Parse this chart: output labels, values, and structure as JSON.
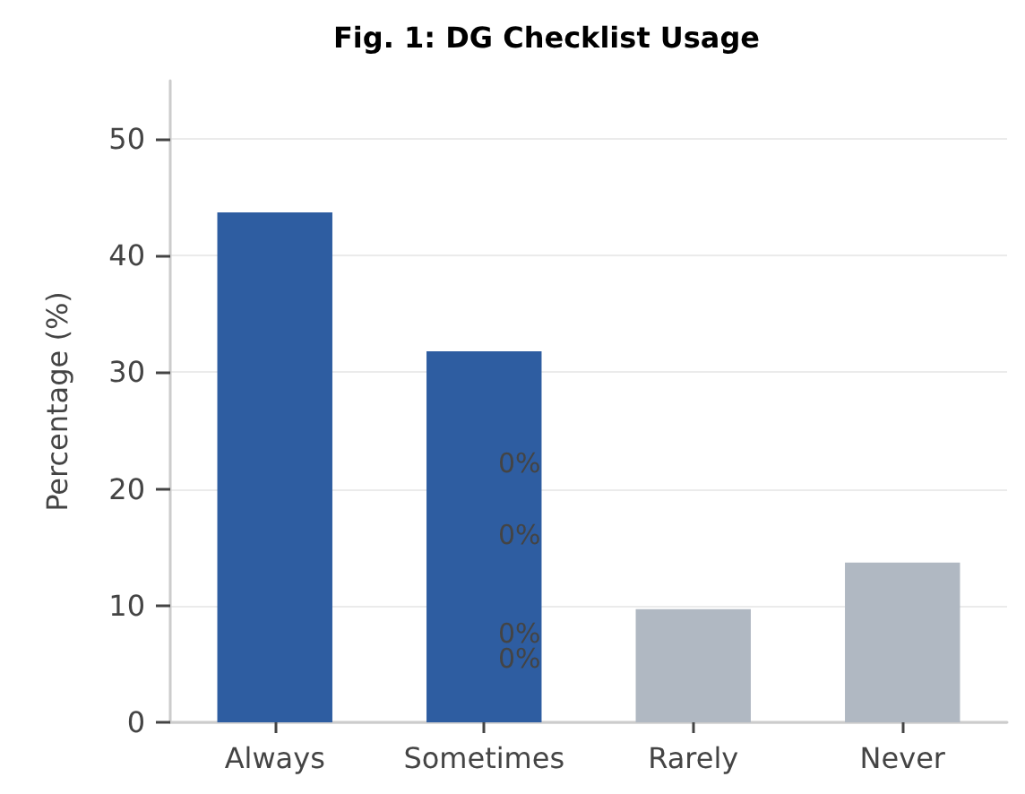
{
  "chart_data": {
    "type": "bar",
    "title": "Fig. 1: DG Checklist Usage",
    "ylabel": "Percentage (%)",
    "categories": [
      "Always",
      "Sometimes",
      "Rarely",
      "Never"
    ],
    "values": [
      43.7,
      31.8,
      9.7,
      13.7
    ],
    "colors": [
      "#2e5da1",
      "#2e5da1",
      "#b0b8c2",
      "#b0b8c2"
    ],
    "ylim": [
      0,
      55
    ],
    "yticks": [
      0,
      10,
      20,
      30,
      40,
      50
    ],
    "grid": "y",
    "annotations": [
      "0%",
      "0%",
      "0%",
      "0%"
    ]
  }
}
